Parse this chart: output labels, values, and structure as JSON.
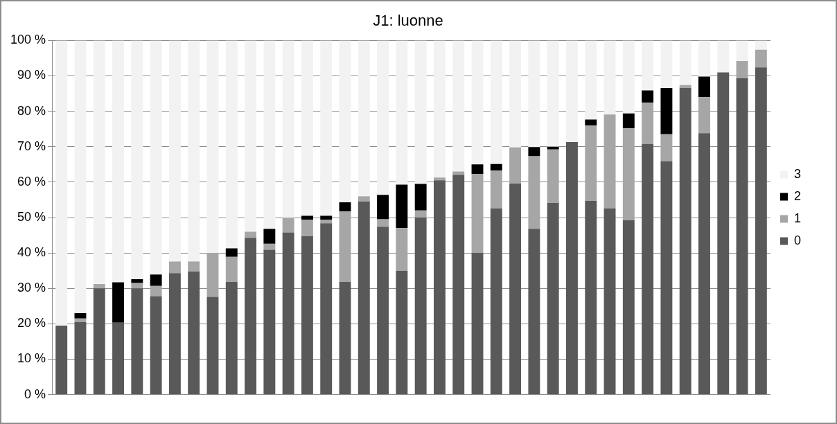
{
  "chart_data": {
    "type": "bar",
    "title": "J1: luonne",
    "stacked": true,
    "categories": [
      null,
      null,
      null,
      null,
      null,
      null,
      null,
      null,
      null,
      null,
      null,
      null,
      null,
      null,
      null,
      null,
      null,
      null,
      null,
      null,
      null,
      null,
      null,
      null,
      null,
      null,
      null,
      null,
      null,
      null,
      null,
      null,
      null,
      null,
      null,
      null,
      null,
      null
    ],
    "series": [
      {
        "name": "0",
        "color": "#595959",
        "values": [
          19.5,
          20.5,
          30,
          20.3,
          30,
          27.8,
          34.3,
          34.8,
          27.6,
          31.8,
          44.3,
          40.9,
          45.8,
          44.7,
          48.4,
          31.8,
          54.5,
          47.4,
          35,
          50,
          60.5,
          62.1,
          40,
          52.6,
          59.6,
          46.8,
          54.1,
          71.3,
          54.7,
          52.6,
          49.2,
          70.8,
          65.9,
          86.6,
          73.8,
          91,
          89.3,
          92.4
        ]
      },
      {
        "name": "1",
        "color": "#a6a6a6",
        "values": [
          0,
          1,
          1.2,
          0,
          1.5,
          2.9,
          3.3,
          2.8,
          12.4,
          7.1,
          1.7,
          1.7,
          4.1,
          4.7,
          1,
          19.9,
          1.5,
          2.1,
          12,
          2,
          0.8,
          0.9,
          22.3,
          10.7,
          10.2,
          20.5,
          15.1,
          0,
          21.3,
          26.5,
          26,
          11.6,
          7.6,
          0.8,
          10.2,
          0,
          4.9,
          5
        ]
      },
      {
        "name": "2",
        "color": "#000000",
        "values": [
          0,
          1.5,
          0,
          11.4,
          1.1,
          3.2,
          0,
          0,
          0,
          2.4,
          0,
          4.2,
          0,
          1.1,
          1.1,
          2.6,
          0,
          6.9,
          12.3,
          7.5,
          0,
          0,
          2.7,
          1.8,
          0,
          2.6,
          0.8,
          0,
          1.7,
          0,
          4.2,
          3.5,
          13.1,
          0,
          5.8,
          0,
          0,
          0
        ]
      },
      {
        "name": "3",
        "color": "#f2f2f2",
        "values": [
          80.5,
          77,
          68.8,
          68.3,
          67.4,
          66.1,
          62.4,
          62.4,
          60,
          58.7,
          54,
          53.2,
          50.1,
          49.5,
          49.5,
          45.7,
          44,
          43.6,
          40.7,
          40.5,
          38.7,
          37,
          35,
          34.9,
          30.2,
          30.1,
          30,
          28.7,
          22.3,
          20.9,
          20.6,
          14.1,
          13.4,
          12.6,
          10.2,
          9,
          5.8,
          2.6
        ]
      }
    ],
    "ylim": [
      0,
      100
    ],
    "yticks": [
      {
        "value": 0,
        "label": "0 %"
      },
      {
        "value": 10,
        "label": "10 %"
      },
      {
        "value": 20,
        "label": "20 %"
      },
      {
        "value": 30,
        "label": "30 %"
      },
      {
        "value": 40,
        "label": "40 %"
      },
      {
        "value": 50,
        "label": "50 %"
      },
      {
        "value": 60,
        "label": "60 %"
      },
      {
        "value": 70,
        "label": "70 %"
      },
      {
        "value": 80,
        "label": "80 %"
      },
      {
        "value": 90,
        "label": "90 %"
      },
      {
        "value": 100,
        "label": "100 %"
      }
    ],
    "grid": "y",
    "legend": "right"
  }
}
